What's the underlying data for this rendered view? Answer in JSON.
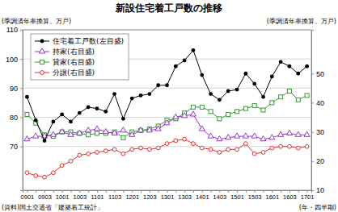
{
  "chart_data": {
    "type": "line",
    "title": "新設住宅着工戸数の推移",
    "y_label": "(季調済年率換算、万戸)",
    "y2_label": "(季調済年率換算、万戸)",
    "x_label": "(年・四半期)",
    "source": "(資料)国土交通省「建築着工統計」",
    "categories": [
      "0901",
      null,
      "0903",
      null,
      "1001",
      null,
      "1003",
      null,
      "1101",
      null,
      "1103",
      null,
      "1201",
      null,
      "1203",
      null,
      "1301",
      null,
      "1303",
      null,
      "1401",
      null,
      "1403",
      null,
      "1501",
      null,
      "1503",
      null,
      "1601",
      null,
      "1603",
      null,
      "1701"
    ],
    "ylim": [
      55,
      110
    ],
    "yticks": [
      70,
      80,
      90,
      100,
      110
    ],
    "y2lim": [
      10,
      65
    ],
    "y2ticks": [
      10,
      20,
      30,
      40,
      50
    ],
    "grid": true,
    "legend": "upper left",
    "series": [
      {
        "name": "住宅着工戸数(左目盛)",
        "color": "#000000",
        "marker": "circle-filled",
        "values": [
          87,
          79,
          72,
          78.5,
          81,
          78.5,
          81.5,
          83.5,
          83,
          82,
          88,
          79.5,
          86.5,
          87.5,
          88,
          91,
          91,
          97.5,
          99.5,
          103,
          94.5,
          88,
          86,
          89,
          89.5,
          95,
          91.5,
          87,
          94,
          99,
          97.5,
          95,
          97.5
        ]
      },
      {
        "name": "持家(右目盛)",
        "color": "#9933cc",
        "marker": "triangle",
        "axis": "y2",
        "values": [
          27.5,
          28.5,
          28.5,
          29,
          30,
          29,
          29.5,
          30.5,
          31,
          30,
          29.5,
          30.5,
          29,
          30.5,
          30.5,
          31,
          33,
          35,
          35.5,
          36,
          31,
          28.5,
          27.5,
          28,
          28.5,
          28.5,
          28.5,
          27.5,
          28,
          29,
          29.5,
          29,
          29
        ]
      },
      {
        "name": "貸家(右目盛)",
        "color": "#339933",
        "marker": "square",
        "axis": "y2",
        "values": [
          36,
          33,
          29,
          28.5,
          30,
          30,
          29.5,
          29,
          29.5,
          29.5,
          30,
          28,
          30,
          30.5,
          31,
          32,
          34,
          34.5,
          36.5,
          38.5,
          38.5,
          37,
          34.5,
          36,
          37,
          38,
          39,
          37.5,
          40,
          42,
          44,
          41,
          42.5
        ]
      },
      {
        "name": "分譲(右目盛)",
        "color": "#e03030",
        "marker": "circle",
        "axis": "y2",
        "values": [
          16,
          15,
          14.5,
          16,
          18.5,
          20,
          22,
          22.5,
          23,
          23.5,
          24,
          22.5,
          24,
          24.5,
          24,
          24.5,
          26,
          27,
          27.5,
          26,
          24.5,
          24,
          23,
          24,
          24,
          26,
          22.5,
          23,
          24.5,
          25,
          25,
          24.5,
          25
        ]
      }
    ]
  }
}
